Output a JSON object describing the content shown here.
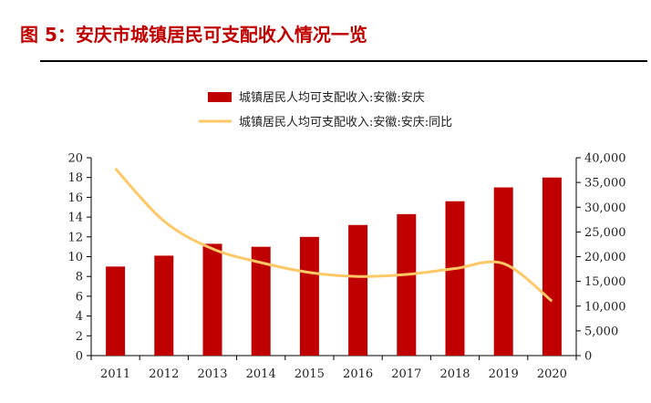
{
  "figure": {
    "title": "图 5：安庆市城镇居民可支配收入情况一览"
  },
  "chart_data": {
    "type": "bar",
    "categories": [
      "2011",
      "2012",
      "2013",
      "2014",
      "2015",
      "2016",
      "2017",
      "2018",
      "2019",
      "2020"
    ],
    "series": [
      {
        "name": "城镇居民人均可支配收入:安徽:安庆",
        "chart_type": "bar",
        "axis": "right",
        "color": "#c00000",
        "values": [
          18000,
          20200,
          22600,
          22000,
          24000,
          26400,
          28600,
          31200,
          34000,
          36000
        ]
      },
      {
        "name": "城镇居民人均可支配收入:安徽:安庆:同比",
        "chart_type": "line",
        "axis": "left",
        "color": "#ffc866",
        "values": [
          18.9,
          13.6,
          10.8,
          9.4,
          8.4,
          8.0,
          8.2,
          8.8,
          9.3,
          5.5
        ]
      }
    ],
    "y_left": {
      "ylim": [
        0,
        20
      ],
      "ticks": [
        "0",
        "2",
        "4",
        "6",
        "8",
        "10",
        "12",
        "14",
        "16",
        "18",
        "20"
      ]
    },
    "y_right": {
      "ylim": [
        0,
        40000
      ],
      "ticks": [
        "0",
        "5,000",
        "10,000",
        "15,000",
        "20,000",
        "25,000",
        "30,000",
        "35,000",
        "40,000"
      ]
    },
    "legend_position": "top",
    "grid": false
  }
}
